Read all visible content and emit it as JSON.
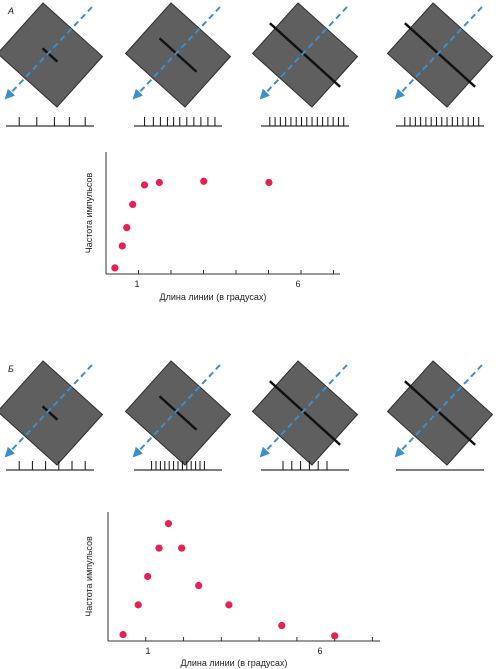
{
  "figure": {
    "colors": {
      "point": "#e8204e",
      "arrow": "#3a8fd0",
      "field": "#5f5f5f",
      "bar": "#111111",
      "axis": "#333333",
      "train": "#555555"
    },
    "panels": [
      {
        "letter": "А",
        "stimuli": [
          {
            "bar_length_deg": 0.4,
            "spikes": [
              0.15,
              0.35,
              0.55,
              0.72,
              0.9
            ]
          },
          {
            "bar_length_deg": 1.0,
            "spikes": [
              0.12,
              0.22,
              0.3,
              0.38,
              0.45,
              0.52,
              0.6,
              0.68,
              0.76,
              0.84,
              0.92
            ]
          },
          {
            "bar_length_deg": 2.0,
            "spikes": [
              0.1,
              0.16,
              0.22,
              0.28,
              0.34,
              0.4,
              0.46,
              0.52,
              0.58,
              0.64,
              0.7,
              0.76,
              0.82,
              0.88,
              0.94
            ]
          },
          {
            "bar_length_deg": 8.0,
            "spikes": [
              0.1,
              0.16,
              0.22,
              0.28,
              0.34,
              0.4,
              0.46,
              0.52,
              0.58,
              0.64,
              0.7,
              0.76,
              0.82,
              0.88,
              0.94
            ]
          }
        ]
      },
      {
        "letter": "Б",
        "stimuli": [
          {
            "bar_length_deg": 0.4,
            "spikes": [
              0.15,
              0.3,
              0.45,
              0.6,
              0.75,
              0.9
            ]
          },
          {
            "bar_length_deg": 1.0,
            "spikes": [
              0.2,
              0.25,
              0.3,
              0.35,
              0.4,
              0.45,
              0.5,
              0.55,
              0.6,
              0.65,
              0.7,
              0.75,
              0.8
            ]
          },
          {
            "bar_length_deg": 2.0,
            "spikes": [
              0.25,
              0.35,
              0.45,
              0.55,
              0.65,
              0.75
            ]
          },
          {
            "bar_length_deg": 8.0,
            "spikes": []
          }
        ]
      }
    ]
  },
  "chart_data": [
    {
      "type": "scatter",
      "title": "",
      "xlabel": "Длина линии  (в градусах)",
      "ylabel": "Частота импульсов",
      "x_ticks": [
        1,
        6
      ],
      "xlim": [
        0.3,
        8.2
      ],
      "ylim": [
        0,
        10
      ],
      "grid": false,
      "series": [
        {
          "x": [
            0.6,
            0.85,
            1.0,
            1.2,
            1.6,
            2.1,
            3.6,
            5.8
          ],
          "y": [
            0.5,
            2.3,
            3.8,
            5.7,
            7.3,
            7.5,
            7.6,
            7.5
          ]
        }
      ]
    },
    {
      "type": "scatter",
      "title": "",
      "xlabel": "Длина линии  (в градусах)",
      "ylabel": "Частота  импульсов",
      "x_ticks": [
        1,
        6
      ],
      "xlim": [
        0,
        7.2
      ],
      "ylim": [
        0,
        10
      ],
      "grid": false,
      "series": [
        {
          "x": [
            0.4,
            0.8,
            1.05,
            1.35,
            1.6,
            1.95,
            2.4,
            3.2,
            4.6,
            6.0
          ],
          "y": [
            0.5,
            2.8,
            5.0,
            7.2,
            9.1,
            7.2,
            4.3,
            2.8,
            1.2,
            0.4
          ]
        }
      ]
    }
  ]
}
